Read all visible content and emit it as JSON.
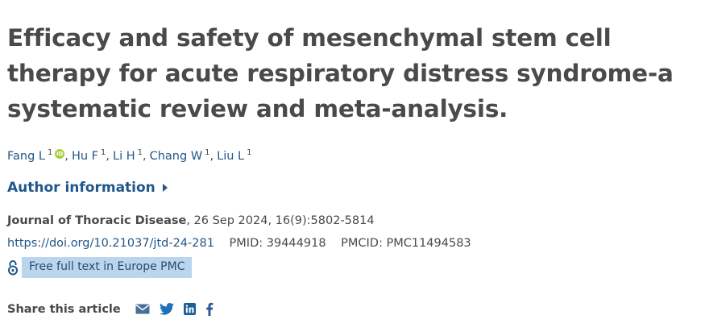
{
  "article": {
    "title": "Efficacy and safety of mesenchymal stem cell therapy for acute respiratory distress syndrome-a systematic review and meta-analysis.",
    "authors": [
      {
        "name": "Fang L",
        "sup": "1",
        "orcid": true
      },
      {
        "name": "Hu F",
        "sup": "1"
      },
      {
        "name": "Li H",
        "sup": "1"
      },
      {
        "name": "Chang W",
        "sup": "1"
      },
      {
        "name": "Liu L",
        "sup": "1"
      }
    ],
    "author_info_label": "Author information",
    "journal_name": "Journal of Thoracic Disease",
    "journal_details": ", 26 Sep 2024, 16(9):5802-5814",
    "doi": "https://doi.org/10.21037/jtd-24-281",
    "pmid": "PMID: 39444918",
    "pmcid": "PMCID: PMC11494583",
    "free_full_text": "Free full text in Europe PMC",
    "share_label": "Share this article",
    "share_icons": [
      "email-icon",
      "twitter-icon",
      "linkedin-icon",
      "facebook-icon"
    ]
  },
  "colors": {
    "link": "#20578a",
    "text": "#494949",
    "badge_bg": "#b9d6ee",
    "orcid": "#a6ce39"
  }
}
